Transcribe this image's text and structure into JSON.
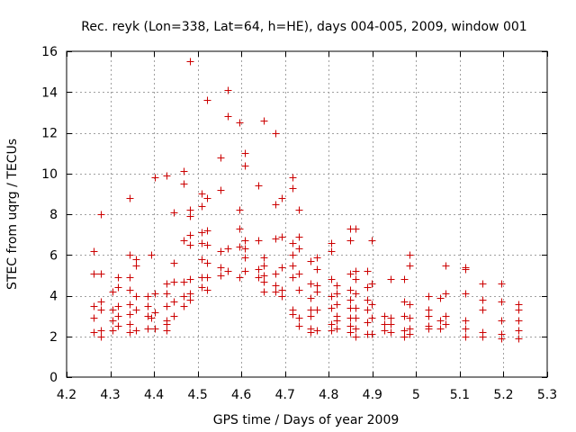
{
  "chart_data": {
    "type": "scatter",
    "title": "Rec. reyk (Lon=338, Lat=64, h=HE), days 004-005, 2009, window 001",
    "xlabel": "GPS time / Days of year 2009",
    "ylabel": "STEC from uqrg / TECUs",
    "xlim": [
      4.2,
      5.3
    ],
    "ylim": [
      0,
      16
    ],
    "x_ticks": [
      4.2,
      4.3,
      4.4,
      4.5,
      4.6,
      4.7,
      4.8,
      4.9,
      5.0,
      5.1,
      5.2,
      5.3
    ],
    "x_tick_labels": [
      "4.2",
      "4.3",
      "4.4",
      "4.5",
      "4.6",
      "4.7",
      "4.8",
      "4.9",
      "5",
      "5.1",
      "5.2",
      "5.3"
    ],
    "y_ticks": [
      0,
      2,
      4,
      6,
      8,
      10,
      12,
      14,
      16
    ],
    "y_tick_labels": [
      "0",
      "2",
      "4",
      "6",
      "8",
      "10",
      "12",
      "14",
      "16"
    ],
    "grid": true,
    "marker": "+",
    "color": "#cc0000",
    "series": [
      {
        "points": [
          [
            4.262,
            6.2
          ],
          [
            4.262,
            5.1
          ],
          [
            4.262,
            3.5
          ],
          [
            4.262,
            2.9
          ],
          [
            4.262,
            2.2
          ],
          [
            4.278,
            8.0
          ],
          [
            4.278,
            5.1
          ],
          [
            4.278,
            3.7
          ],
          [
            4.278,
            3.3
          ],
          [
            4.278,
            2.3
          ],
          [
            4.278,
            2.0
          ],
          [
            4.305,
            4.2
          ],
          [
            4.305,
            3.3
          ],
          [
            4.305,
            2.8
          ],
          [
            4.305,
            2.3
          ],
          [
            4.318,
            4.9
          ],
          [
            4.318,
            4.4
          ],
          [
            4.318,
            3.5
          ],
          [
            4.318,
            3.0
          ],
          [
            4.318,
            2.5
          ],
          [
            4.345,
            8.8
          ],
          [
            4.345,
            6.0
          ],
          [
            4.345,
            4.9
          ],
          [
            4.345,
            4.3
          ],
          [
            4.345,
            3.6
          ],
          [
            4.345,
            3.1
          ],
          [
            4.345,
            2.6
          ],
          [
            4.345,
            2.2
          ],
          [
            4.358,
            5.8
          ],
          [
            4.358,
            5.5
          ],
          [
            4.358,
            4.0
          ],
          [
            4.358,
            3.3
          ],
          [
            4.358,
            2.3
          ],
          [
            4.385,
            4.0
          ],
          [
            4.385,
            3.5
          ],
          [
            4.385,
            3.0
          ],
          [
            4.385,
            2.4
          ],
          [
            4.393,
            6.0
          ],
          [
            4.393,
            2.9
          ],
          [
            4.402,
            9.8
          ],
          [
            4.402,
            4.1
          ],
          [
            4.402,
            3.2
          ],
          [
            4.402,
            2.4
          ],
          [
            4.428,
            9.9
          ],
          [
            4.428,
            4.6
          ],
          [
            4.428,
            4.1
          ],
          [
            4.428,
            3.5
          ],
          [
            4.428,
            2.8
          ],
          [
            4.428,
            2.6
          ],
          [
            4.428,
            2.3
          ],
          [
            4.445,
            8.1
          ],
          [
            4.445,
            5.6
          ],
          [
            4.445,
            4.7
          ],
          [
            4.445,
            3.7
          ],
          [
            4.445,
            3.0
          ],
          [
            4.468,
            10.1
          ],
          [
            4.468,
            9.5
          ],
          [
            4.468,
            6.7
          ],
          [
            4.468,
            4.7
          ],
          [
            4.468,
            4.0
          ],
          [
            4.468,
            3.5
          ],
          [
            4.482,
            15.5
          ],
          [
            4.482,
            8.2
          ],
          [
            4.482,
            7.9
          ],
          [
            4.482,
            7.0
          ],
          [
            4.482,
            6.5
          ],
          [
            4.482,
            4.8
          ],
          [
            4.482,
            4.1
          ],
          [
            4.482,
            3.8
          ],
          [
            4.508,
            9.0
          ],
          [
            4.508,
            8.4
          ],
          [
            4.508,
            7.1
          ],
          [
            4.508,
            6.6
          ],
          [
            4.508,
            5.8
          ],
          [
            4.508,
            4.9
          ],
          [
            4.508,
            4.4
          ],
          [
            4.522,
            13.6
          ],
          [
            4.522,
            8.8
          ],
          [
            4.522,
            7.2
          ],
          [
            4.522,
            6.5
          ],
          [
            4.522,
            5.6
          ],
          [
            4.522,
            4.9
          ],
          [
            4.522,
            4.3
          ],
          [
            4.552,
            10.8
          ],
          [
            4.552,
            9.2
          ],
          [
            4.552,
            6.2
          ],
          [
            4.552,
            5.4
          ],
          [
            4.552,
            5.0
          ],
          [
            4.568,
            14.1
          ],
          [
            4.568,
            12.8
          ],
          [
            4.568,
            6.3
          ],
          [
            4.568,
            5.2
          ],
          [
            4.595,
            12.5
          ],
          [
            4.595,
            8.2
          ],
          [
            4.595,
            7.3
          ],
          [
            4.595,
            6.4
          ],
          [
            4.595,
            4.9
          ],
          [
            4.608,
            11.0
          ],
          [
            4.608,
            10.4
          ],
          [
            4.608,
            6.7
          ],
          [
            4.608,
            6.3
          ],
          [
            4.608,
            5.9
          ],
          [
            4.608,
            5.2
          ],
          [
            4.638,
            9.4
          ],
          [
            4.638,
            6.7
          ],
          [
            4.638,
            5.3
          ],
          [
            4.638,
            4.9
          ],
          [
            4.652,
            12.6
          ],
          [
            4.652,
            5.9
          ],
          [
            4.652,
            5.5
          ],
          [
            4.652,
            5.0
          ],
          [
            4.652,
            4.7
          ],
          [
            4.652,
            4.2
          ],
          [
            4.678,
            12.0
          ],
          [
            4.678,
            8.5
          ],
          [
            4.678,
            6.8
          ],
          [
            4.678,
            5.1
          ],
          [
            4.678,
            4.5
          ],
          [
            4.678,
            4.2
          ],
          [
            4.692,
            8.8
          ],
          [
            4.692,
            6.9
          ],
          [
            4.692,
            5.4
          ],
          [
            4.692,
            4.3
          ],
          [
            4.692,
            4.0
          ],
          [
            4.718,
            9.8
          ],
          [
            4.718,
            9.3
          ],
          [
            4.718,
            6.6
          ],
          [
            4.718,
            6.0
          ],
          [
            4.718,
            5.5
          ],
          [
            4.718,
            4.9
          ],
          [
            4.718,
            3.3
          ],
          [
            4.718,
            3.1
          ],
          [
            4.732,
            8.2
          ],
          [
            4.732,
            6.9
          ],
          [
            4.732,
            6.3
          ],
          [
            4.732,
            5.1
          ],
          [
            4.732,
            4.3
          ],
          [
            4.732,
            2.9
          ],
          [
            4.732,
            2.5
          ],
          [
            4.758,
            5.7
          ],
          [
            4.758,
            4.6
          ],
          [
            4.758,
            3.9
          ],
          [
            4.758,
            3.3
          ],
          [
            4.758,
            3.0
          ],
          [
            4.758,
            2.4
          ],
          [
            4.758,
            2.2
          ],
          [
            4.772,
            5.9
          ],
          [
            4.772,
            5.3
          ],
          [
            4.772,
            4.5
          ],
          [
            4.772,
            4.2
          ],
          [
            4.772,
            3.3
          ],
          [
            4.772,
            2.3
          ],
          [
            4.805,
            6.6
          ],
          [
            4.805,
            6.2
          ],
          [
            4.805,
            4.8
          ],
          [
            4.805,
            4.0
          ],
          [
            4.805,
            3.4
          ],
          [
            4.805,
            2.6
          ],
          [
            4.805,
            2.3
          ],
          [
            4.818,
            4.5
          ],
          [
            4.818,
            4.1
          ],
          [
            4.818,
            3.6
          ],
          [
            4.818,
            3.0
          ],
          [
            4.818,
            2.8
          ],
          [
            4.818,
            2.4
          ],
          [
            4.848,
            7.3
          ],
          [
            4.848,
            6.7
          ],
          [
            4.848,
            5.1
          ],
          [
            4.848,
            4.3
          ],
          [
            4.848,
            3.8
          ],
          [
            4.848,
            3.4
          ],
          [
            4.848,
            2.9
          ],
          [
            4.848,
            2.5
          ],
          [
            4.848,
            2.2
          ],
          [
            4.862,
            7.3
          ],
          [
            4.862,
            5.2
          ],
          [
            4.862,
            4.8
          ],
          [
            4.862,
            4.1
          ],
          [
            4.862,
            3.4
          ],
          [
            4.862,
            2.9
          ],
          [
            4.862,
            2.4
          ],
          [
            4.862,
            2.0
          ],
          [
            4.888,
            5.2
          ],
          [
            4.888,
            4.4
          ],
          [
            4.888,
            3.8
          ],
          [
            4.888,
            3.3
          ],
          [
            4.888,
            2.7
          ],
          [
            4.888,
            2.1
          ],
          [
            4.898,
            6.7
          ],
          [
            4.898,
            4.6
          ],
          [
            4.898,
            3.6
          ],
          [
            4.898,
            2.9
          ],
          [
            4.898,
            2.1
          ],
          [
            4.928,
            3.0
          ],
          [
            4.928,
            2.6
          ],
          [
            4.928,
            2.3
          ],
          [
            4.942,
            4.8
          ],
          [
            4.942,
            2.9
          ],
          [
            4.942,
            2.6
          ],
          [
            4.942,
            2.2
          ],
          [
            4.972,
            4.8
          ],
          [
            4.972,
            3.7
          ],
          [
            4.972,
            3.0
          ],
          [
            4.972,
            2.3
          ],
          [
            4.972,
            2.0
          ],
          [
            4.985,
            6.0
          ],
          [
            4.985,
            5.5
          ],
          [
            4.985,
            3.6
          ],
          [
            4.985,
            2.9
          ],
          [
            4.985,
            2.4
          ],
          [
            4.985,
            2.1
          ],
          [
            5.028,
            4.0
          ],
          [
            5.028,
            3.3
          ],
          [
            5.028,
            3.0
          ],
          [
            5.028,
            2.5
          ],
          [
            5.028,
            2.4
          ],
          [
            5.055,
            3.9
          ],
          [
            5.055,
            2.8
          ],
          [
            5.055,
            2.4
          ],
          [
            5.068,
            5.5
          ],
          [
            5.068,
            4.1
          ],
          [
            5.068,
            3.0
          ],
          [
            5.068,
            2.6
          ],
          [
            5.112,
            5.4
          ],
          [
            5.112,
            5.3
          ],
          [
            5.112,
            4.1
          ],
          [
            5.112,
            2.8
          ],
          [
            5.112,
            2.4
          ],
          [
            5.112,
            2.0
          ],
          [
            5.152,
            4.6
          ],
          [
            5.152,
            3.8
          ],
          [
            5.152,
            3.3
          ],
          [
            5.152,
            2.2
          ],
          [
            5.152,
            2.0
          ],
          [
            5.195,
            4.6
          ],
          [
            5.195,
            3.7
          ],
          [
            5.195,
            2.8
          ],
          [
            5.195,
            2.1
          ],
          [
            5.195,
            1.9
          ],
          [
            5.235,
            3.6
          ],
          [
            5.235,
            3.3
          ],
          [
            5.235,
            2.8
          ],
          [
            5.235,
            2.3
          ],
          [
            5.235,
            1.9
          ]
        ]
      }
    ]
  }
}
